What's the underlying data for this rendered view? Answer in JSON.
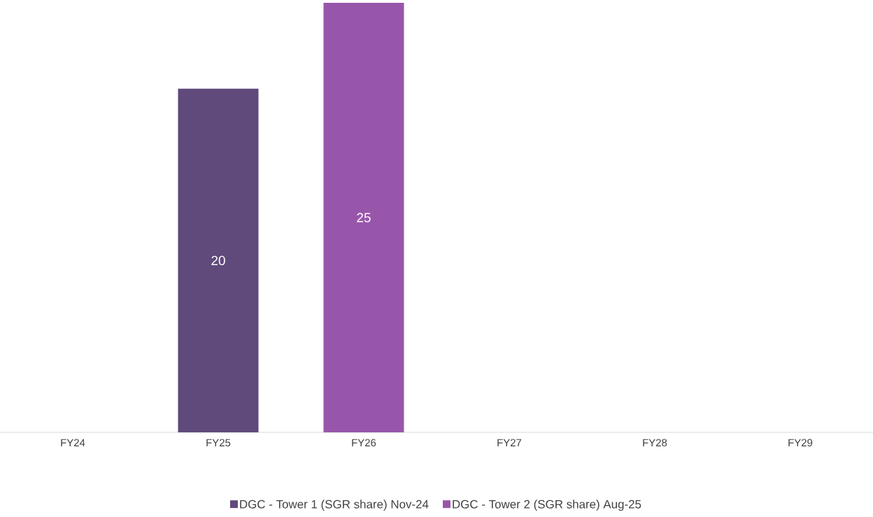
{
  "chart_data": {
    "type": "bar",
    "categories": [
      "FY24",
      "FY25",
      "FY26",
      "FY27",
      "FY28",
      "FY29"
    ],
    "series": [
      {
        "name": "DGC - Tower 1  (SGR share) Nov-24",
        "color": "#604a7b",
        "values": [
          null,
          20,
          null,
          null,
          null,
          null
        ]
      },
      {
        "name": "DGC - Tower 2  (SGR share) Aug-25",
        "color": "#9856ab",
        "values": [
          null,
          null,
          25,
          null,
          null,
          null
        ]
      }
    ],
    "data_labels": true,
    "legend": "bottom"
  }
}
